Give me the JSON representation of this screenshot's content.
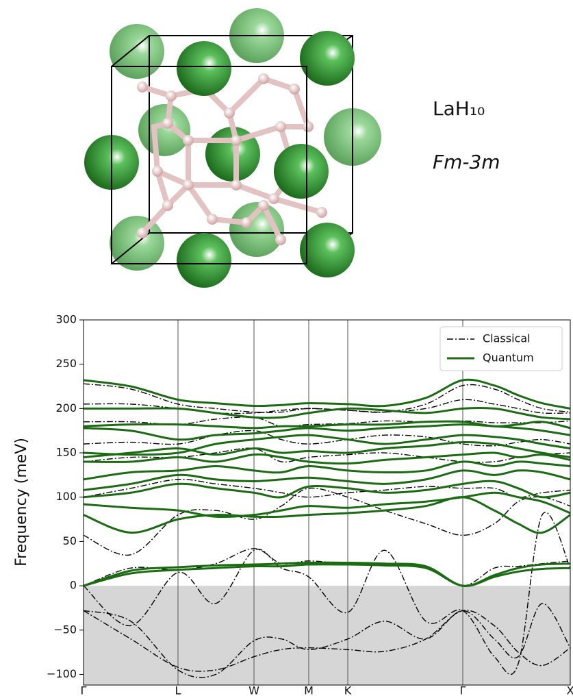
{
  "structure": {
    "formula": "LaH₁₀",
    "space_group": "Fm-3m"
  },
  "chart_data": {
    "type": "line",
    "ylabel": "Frequency (meV)",
    "xlim": [
      0,
      7.11
    ],
    "ylim": [
      -112,
      300
    ],
    "xticks": [
      {
        "value": 0,
        "label": "Γ"
      },
      {
        "value": 1.38,
        "label": "L"
      },
      {
        "value": 2.49,
        "label": "W"
      },
      {
        "value": 3.29,
        "label": "M"
      },
      {
        "value": 3.86,
        "label": "K"
      },
      {
        "value": 5.54,
        "label": "Γ"
      },
      {
        "value": 7.11,
        "label": "X"
      }
    ],
    "yticks": [
      {
        "value": -100,
        "label": "−100"
      },
      {
        "value": -50,
        "label": "−50"
      },
      0,
      50,
      100,
      150,
      200,
      250,
      300
    ],
    "legend": "upper right",
    "x": [
      0,
      0.69,
      1.38,
      1.93,
      2.49,
      2.89,
      3.29,
      3.86,
      4.4,
      5.0,
      5.54,
      6.0,
      6.35,
      6.7,
      7.11
    ],
    "series": [
      {
        "name": "Classical",
        "color": "#000000",
        "dash": "dashdot",
        "bands": [
          [
            -28,
            -60,
            -92,
            -95,
            -80,
            -72,
            -70,
            -72,
            -74,
            -60,
            -28,
            -45,
            -75,
            -90,
            -70
          ],
          [
            -28,
            -40,
            -95,
            -100,
            -62,
            -60,
            -72,
            -60,
            -40,
            -60,
            -28,
            -60,
            -80,
            -20,
            -70
          ],
          [
            0,
            -45,
            15,
            -20,
            40,
            20,
            10,
            -30,
            40,
            -40,
            -28,
            -80,
            -88,
            80,
            20
          ],
          [
            0,
            20,
            18,
            25,
            42,
            25,
            28,
            25,
            24,
            20,
            0,
            20,
            22,
            25,
            28
          ],
          [
            57,
            35,
            80,
            85,
            75,
            90,
            110,
            100,
            85,
            70,
            57,
            70,
            95,
            100,
            90
          ],
          [
            100,
            110,
            120,
            115,
            110,
            105,
            100,
            105,
            108,
            112,
            110,
            110,
            100,
            105,
            108
          ],
          [
            140,
            145,
            145,
            150,
            155,
            140,
            145,
            148,
            150,
            145,
            140,
            140,
            145,
            148,
            150
          ],
          [
            160,
            162,
            160,
            170,
            175,
            165,
            160,
            165,
            170,
            168,
            160,
            158,
            162,
            165,
            160
          ],
          [
            185,
            185,
            182,
            188,
            190,
            180,
            182,
            183,
            186,
            185,
            186,
            184,
            184,
            184,
            186
          ],
          [
            205,
            205,
            200,
            195,
            195,
            198,
            200,
            198,
            196,
            200,
            210,
            205,
            200,
            195,
            195
          ],
          [
            228,
            222,
            205,
            200,
            196,
            196,
            200,
            198,
            196,
            205,
            226,
            222,
            210,
            200,
            196
          ]
        ]
      },
      {
        "name": "Quantum",
        "color": "#1a6b12",
        "dash": "solid",
        "bands": [
          [
            0,
            14,
            18,
            20,
            22,
            22,
            24,
            24,
            23,
            20,
            0,
            10,
            16,
            19,
            20
          ],
          [
            0,
            17,
            21,
            23,
            24,
            25,
            26,
            26,
            25,
            22,
            0,
            12,
            20,
            24,
            25
          ],
          [
            80,
            60,
            75,
            80,
            78,
            78,
            80,
            82,
            85,
            90,
            100,
            85,
            70,
            60,
            80
          ],
          [
            92,
            88,
            85,
            78,
            80,
            85,
            90,
            88,
            92,
            95,
            100,
            105,
            100,
            95,
            82
          ],
          [
            100,
            105,
            115,
            110,
            105,
            100,
            112,
            110,
            105,
            108,
            115,
            118,
            110,
            100,
            105
          ],
          [
            108,
            115,
            125,
            120,
            118,
            120,
            122,
            118,
            115,
            120,
            130,
            125,
            130,
            128,
            120
          ],
          [
            120,
            128,
            130,
            135,
            130,
            128,
            135,
            130,
            128,
            130,
            140,
            135,
            140,
            138,
            135
          ],
          [
            140,
            140,
            145,
            140,
            148,
            145,
            140,
            138,
            142,
            145,
            148,
            150,
            145,
            148,
            142
          ],
          [
            145,
            150,
            155,
            148,
            155,
            150,
            152,
            150,
            155,
            158,
            162,
            160,
            155,
            150,
            145
          ],
          [
            150,
            148,
            150,
            160,
            165,
            168,
            170,
            165,
            160,
            165,
            170,
            168,
            165,
            160,
            155
          ],
          [
            178,
            175,
            165,
            170,
            172,
            175,
            178,
            175,
            178,
            180,
            182,
            180,
            178,
            175,
            170
          ],
          [
            180,
            182,
            182,
            180,
            178,
            180,
            180,
            182,
            182,
            185,
            185,
            180,
            182,
            185,
            178
          ],
          [
            200,
            200,
            200,
            195,
            190,
            190,
            195,
            200,
            198,
            195,
            200,
            200,
            195,
            190,
            188
          ],
          [
            232,
            225,
            210,
            206,
            203,
            204,
            206,
            205,
            203,
            212,
            232,
            226,
            215,
            206,
            200
          ]
        ]
      }
    ]
  }
}
